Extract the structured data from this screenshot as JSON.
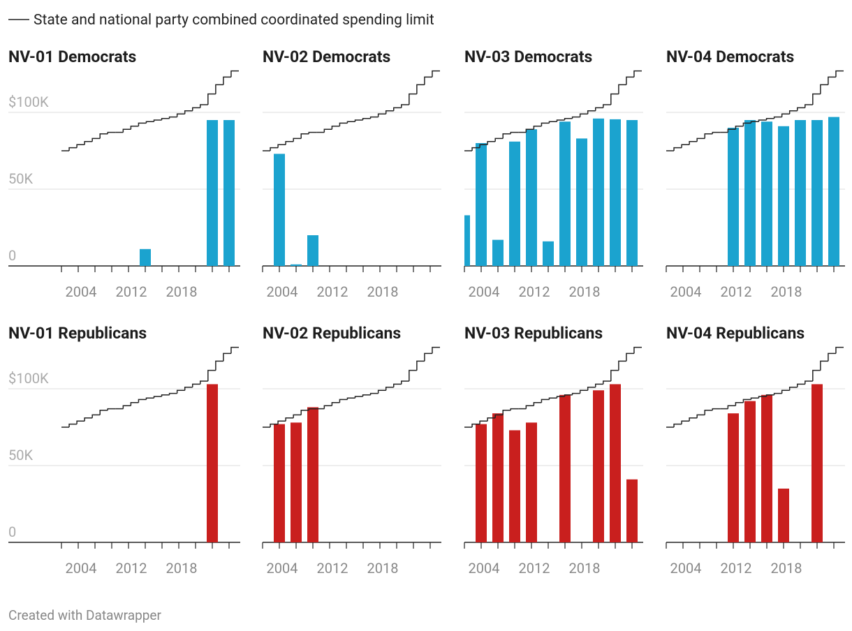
{
  "limit": {
    "name": "State and national party combined coordinated spending limit",
    "values": [
      75,
      77,
      79,
      81,
      83,
      86,
      87,
      87,
      89,
      91,
      93,
      94,
      95,
      96,
      97,
      99,
      101,
      103,
      105,
      112,
      118,
      123,
      127
    ]
  },
  "footer": "Created with Datawrapper",
  "chart_data": [
    {
      "type": "bar",
      "title": "NV-01 Democrats",
      "color": "#1ba3cf",
      "categories": [
        null,
        "2004",
        null,
        null,
        "2012",
        null,
        null,
        "2018",
        null,
        null,
        null
      ],
      "values": [
        0,
        0,
        0,
        0,
        0,
        11000,
        0,
        0,
        0,
        95000,
        95000
      ],
      "ylim": [
        0,
        130000
      ],
      "yticks": [
        0,
        {
          "value": 50000,
          "label": "50K"
        },
        {
          "value": 100000,
          "label": "$100K"
        }
      ]
    },
    {
      "type": "bar",
      "title": "NV-02 Democrats",
      "color": "#1ba3cf",
      "categories": [
        null,
        "2004",
        null,
        null,
        "2012",
        null,
        null,
        "2018",
        null,
        null,
        null
      ],
      "values": [
        0,
        73000,
        1000,
        20000,
        0,
        0,
        0,
        0,
        0,
        0,
        0
      ],
      "ylim": [
        0,
        130000
      ],
      "yticks": [
        0,
        {
          "value": 50000,
          "label": "50K"
        },
        {
          "value": 100000,
          "label": "$100K"
        }
      ]
    },
    {
      "type": "bar",
      "title": "NV-03 Democrats",
      "color": "#1ba3cf",
      "categories": [
        null,
        "2004",
        null,
        null,
        "2012",
        null,
        null,
        "2018",
        null,
        null,
        null
      ],
      "values": [
        33000,
        80000,
        17000,
        81000,
        89000,
        16000,
        94000,
        83000,
        96000,
        95500,
        95000
      ],
      "ylim": [
        0,
        130000
      ],
      "yticks": [
        0,
        {
          "value": 50000,
          "label": "50K"
        },
        {
          "value": 100000,
          "label": "$100K"
        }
      ]
    },
    {
      "type": "bar",
      "title": "NV-04 Democrats",
      "color": "#1ba3cf",
      "categories": [
        null,
        "2004",
        null,
        null,
        "2012",
        null,
        null,
        "2018",
        null,
        null,
        null
      ],
      "values": [
        0,
        0,
        0,
        0,
        90000,
        95000,
        94000,
        91000,
        95000,
        95000,
        97000
      ],
      "ylim": [
        0,
        130000
      ],
      "yticks": [
        0,
        {
          "value": 50000,
          "label": "50K"
        },
        {
          "value": 100000,
          "label": "$100K"
        }
      ]
    },
    {
      "type": "bar",
      "title": "NV-01 Republicans",
      "color": "#c91f1e",
      "categories": [
        null,
        "2004",
        null,
        null,
        "2012",
        null,
        null,
        "2018",
        null,
        null,
        null
      ],
      "values": [
        0,
        0,
        0,
        0,
        0,
        0,
        0,
        0,
        0,
        103000,
        0
      ],
      "ylim": [
        0,
        130000
      ],
      "yticks": [
        0,
        {
          "value": 50000,
          "label": "50K"
        },
        {
          "value": 100000,
          "label": "$100K"
        }
      ]
    },
    {
      "type": "bar",
      "title": "NV-02 Republicans",
      "color": "#c91f1e",
      "categories": [
        null,
        "2004",
        null,
        null,
        "2012",
        null,
        null,
        "2018",
        null,
        null,
        null
      ],
      "values": [
        0,
        77000,
        78000,
        88000,
        0,
        0,
        0,
        0,
        0,
        0,
        0
      ],
      "ylim": [
        0,
        130000
      ],
      "yticks": [
        0,
        {
          "value": 50000,
          "label": "50K"
        },
        {
          "value": 100000,
          "label": "$100K"
        }
      ]
    },
    {
      "type": "bar",
      "title": "NV-03 Republicans",
      "color": "#c91f1e",
      "categories": [
        null,
        "2004",
        null,
        null,
        "2012",
        null,
        null,
        "2018",
        null,
        null,
        null
      ],
      "values": [
        0,
        77000,
        84000,
        73000,
        78000,
        0,
        96000,
        0,
        99000,
        103000,
        41000
      ],
      "ylim": [
        0,
        130000
      ],
      "yticks": [
        0,
        {
          "value": 50000,
          "label": "50K"
        },
        {
          "value": 100000,
          "label": "$100K"
        }
      ]
    },
    {
      "type": "bar",
      "title": "NV-04 Republicans",
      "color": "#c91f1e",
      "categories": [
        null,
        "2004",
        null,
        null,
        "2012",
        null,
        null,
        "2018",
        null,
        null,
        null
      ],
      "values": [
        0,
        0,
        0,
        0,
        84000,
        92000,
        96000,
        35000,
        0,
        103000,
        0
      ],
      "ylim": [
        0,
        130000
      ],
      "yticks": [
        0,
        {
          "value": 50000,
          "label": "50K"
        },
        {
          "value": 100000,
          "label": "$100K"
        }
      ]
    }
  ]
}
